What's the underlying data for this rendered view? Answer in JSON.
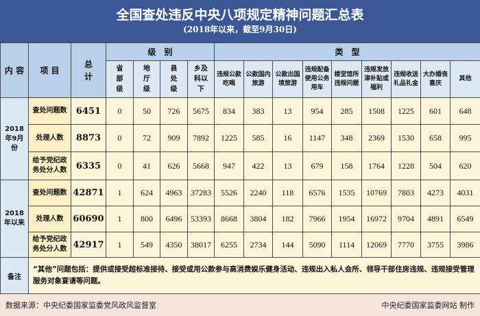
{
  "title": "全国查处违反中央八项规定精神问题汇总表",
  "subtitle": "(2018年以来，截至9月30日)",
  "header": {
    "content": "内 容",
    "item": "项 目",
    "total": "总计",
    "level_group": "级　别",
    "type_group": "类　型",
    "levels": [
      "省部级",
      "地厅级",
      "县处级",
      "乡及科以下"
    ],
    "types": [
      "违规公款吃喝",
      "公款国内旅游",
      "公款出国境旅游",
      "违规配备使用公务用车",
      "楼堂馆所违规问题",
      "违规发放津补贴或福利",
      "违规收送礼品礼金",
      "大办婚丧喜庆",
      "其他"
    ]
  },
  "groups": [
    {
      "label": "2018年9月份",
      "rows": [
        {
          "item": "查处问题数",
          "total": "6451",
          "values": [
            "0",
            "50",
            "726",
            "5675",
            "834",
            "383",
            "13",
            "954",
            "285",
            "1508",
            "1225",
            "601",
            "648"
          ]
        },
        {
          "item": "处理人数",
          "total": "8873",
          "values": [
            "0",
            "72",
            "909",
            "7892",
            "1225",
            "585",
            "16",
            "1147",
            "348",
            "2369",
            "1530",
            "658",
            "995"
          ]
        },
        {
          "item": "给予党纪政务处分人数",
          "total": "6335",
          "values": [
            "0",
            "41",
            "626",
            "5668",
            "947",
            "422",
            "13",
            "679",
            "158",
            "1764",
            "1228",
            "504",
            "620"
          ]
        }
      ]
    },
    {
      "label": "2018年以来",
      "rows": [
        {
          "item": "查处问题数",
          "total": "42871",
          "values": [
            "1",
            "624",
            "4963",
            "37283",
            "5526",
            "2240",
            "118",
            "6576",
            "1535",
            "10769",
            "7803",
            "4273",
            "4031"
          ]
        },
        {
          "item": "处理人数",
          "total": "60690",
          "values": [
            "1",
            "800",
            "6496",
            "53393",
            "8668",
            "3804",
            "182",
            "7966",
            "1954",
            "16972",
            "9704",
            "4891",
            "6549"
          ]
        },
        {
          "item": "给予党纪政务处分人数",
          "total": "42917",
          "values": [
            "1",
            "549",
            "4350",
            "38017",
            "6255",
            "2734",
            "144",
            "5090",
            "1114",
            "12069",
            "7770",
            "3755",
            "3986"
          ]
        }
      ]
    }
  ],
  "note": {
    "label": "备注",
    "text": "“其他”问题包括：提供或接受超标准接待、接受或用公款参与高消费娱乐健身活动、违规出入私人会所、领导干部住房违规、违规接受管理服务对象宴请等问题。"
  },
  "footer": {
    "source": "数据来源：中央纪委国家监委党风政风监督室",
    "credit": "中央纪委国家监委网站  制作"
  },
  "colors": {
    "title_bg": "#3b5796",
    "header_bg": "#b9d0ea",
    "subheader_bg": "#dde8f5",
    "cell_bg": "#fdf5da",
    "footer_bg": "#f6e5dc"
  }
}
